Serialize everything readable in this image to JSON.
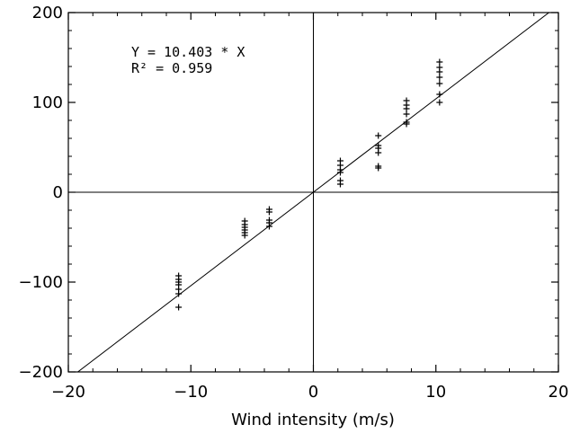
{
  "chart_data": {
    "type": "scatter",
    "title": "",
    "xlabel": "Wind intensity (m/s)",
    "ylabel": "",
    "xlim": [
      -20,
      20
    ],
    "ylim": [
      -200,
      200
    ],
    "grid": false,
    "x_ticks": [
      "−20",
      "−10",
      "0",
      "10",
      "20"
    ],
    "y_ticks": [
      "200",
      "100",
      "0",
      "−100",
      "−200"
    ],
    "annotations": [
      "Y = 10.403 * X",
      "R² = 0.959"
    ],
    "fit_line": {
      "slope": 10.403,
      "intercept": 0
    },
    "reference_lines": {
      "x": 0,
      "y": 0
    },
    "marker": "plus",
    "series": [
      {
        "points": [
          {
            "x": -11.0,
            "y": -128
          },
          {
            "x": -11.0,
            "y": -113
          },
          {
            "x": -11.0,
            "y": -108
          },
          {
            "x": -11.0,
            "y": -103
          },
          {
            "x": -11.0,
            "y": -100
          },
          {
            "x": -11.0,
            "y": -97
          },
          {
            "x": -11.0,
            "y": -93
          },
          {
            "x": -5.6,
            "y": -48
          },
          {
            "x": -5.6,
            "y": -45
          },
          {
            "x": -5.6,
            "y": -42
          },
          {
            "x": -5.6,
            "y": -39
          },
          {
            "x": -5.6,
            "y": -36
          },
          {
            "x": -5.6,
            "y": -32
          },
          {
            "x": -3.6,
            "y": -38
          },
          {
            "x": -3.6,
            "y": -34
          },
          {
            "x": -3.6,
            "y": -31
          },
          {
            "x": -3.6,
            "y": -22
          },
          {
            "x": -3.6,
            "y": -19
          },
          {
            "x": 2.2,
            "y": 9
          },
          {
            "x": 2.2,
            "y": 13
          },
          {
            "x": 2.2,
            "y": 22
          },
          {
            "x": 2.2,
            "y": 25
          },
          {
            "x": 2.2,
            "y": 30
          },
          {
            "x": 2.2,
            "y": 35
          },
          {
            "x": 5.3,
            "y": 27
          },
          {
            "x": 5.3,
            "y": 29
          },
          {
            "x": 5.3,
            "y": 44
          },
          {
            "x": 5.3,
            "y": 49
          },
          {
            "x": 5.3,
            "y": 52
          },
          {
            "x": 5.3,
            "y": 63
          },
          {
            "x": 7.6,
            "y": 76
          },
          {
            "x": 7.6,
            "y": 78
          },
          {
            "x": 7.6,
            "y": 87
          },
          {
            "x": 7.6,
            "y": 93
          },
          {
            "x": 7.6,
            "y": 97
          },
          {
            "x": 7.6,
            "y": 102
          },
          {
            "x": 10.3,
            "y": 100
          },
          {
            "x": 10.3,
            "y": 109
          },
          {
            "x": 10.3,
            "y": 121
          },
          {
            "x": 10.3,
            "y": 128
          },
          {
            "x": 10.3,
            "y": 134
          },
          {
            "x": 10.3,
            "y": 139
          },
          {
            "x": 10.3,
            "y": 145
          }
        ]
      }
    ]
  }
}
